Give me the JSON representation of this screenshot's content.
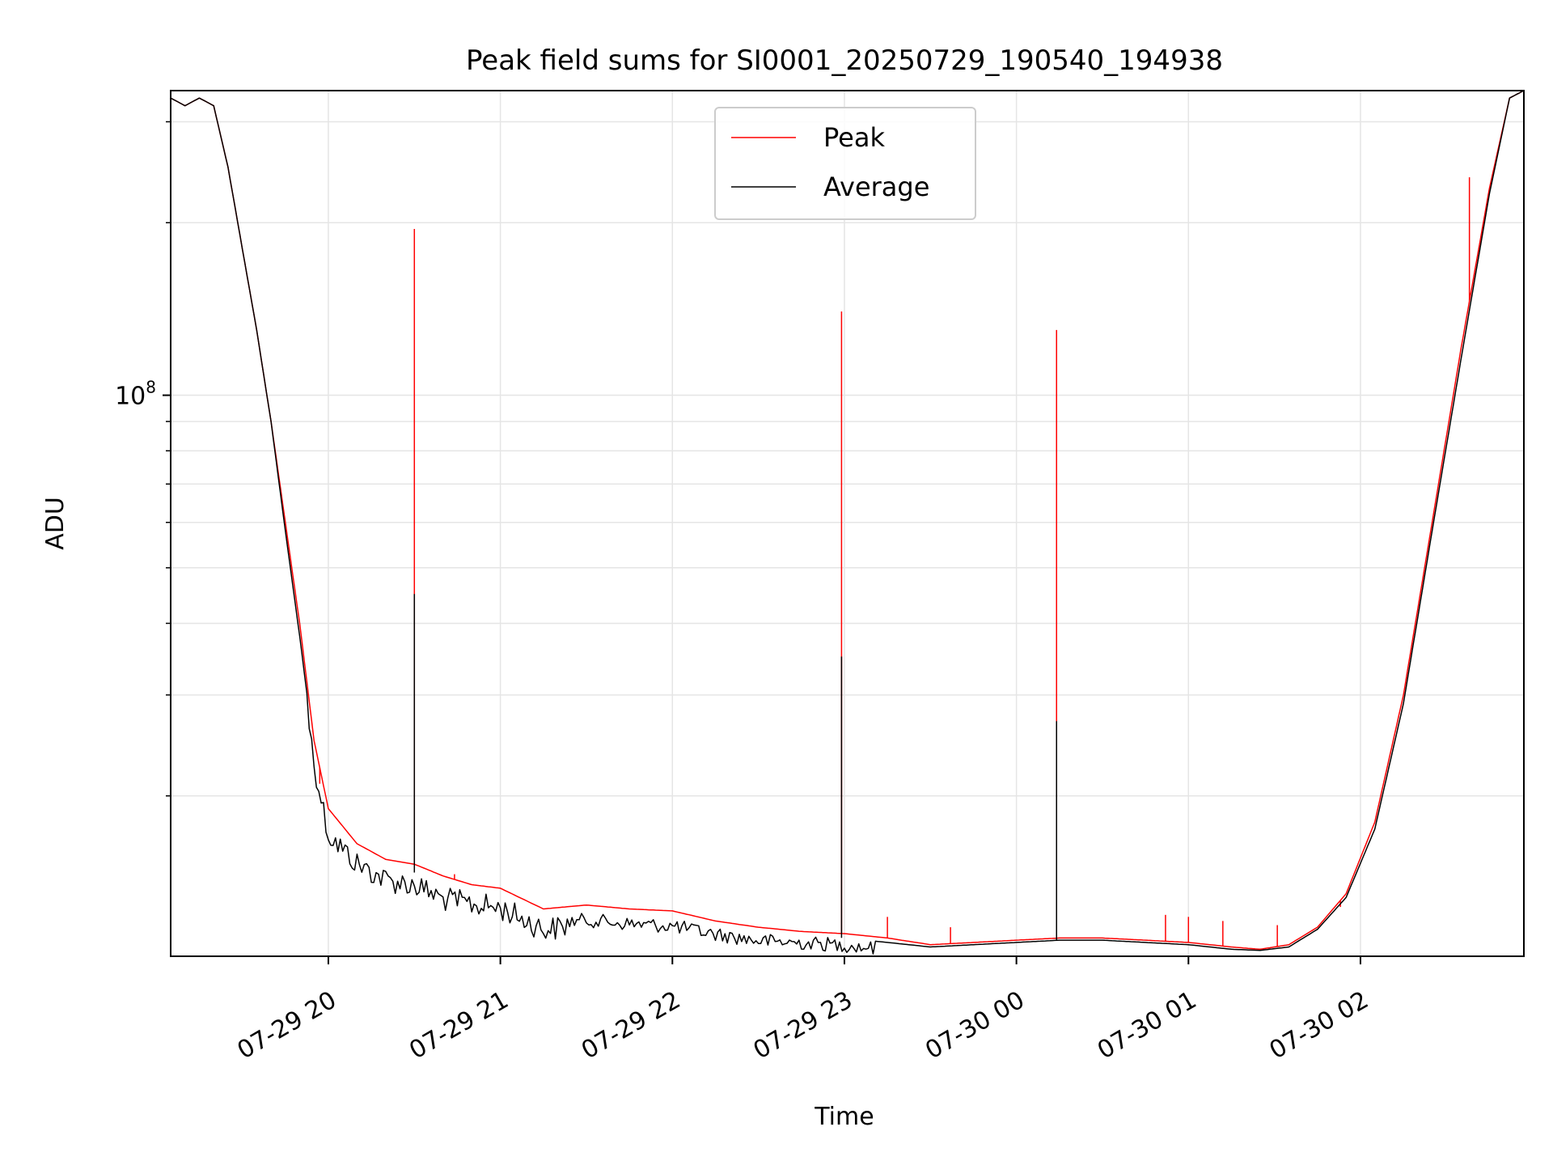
{
  "chart_data": {
    "type": "line",
    "title": "Peak field sums for SI0001_20250729_190540_194938",
    "xlabel": "Time",
    "ylabel": "ADU",
    "y_scale": "log",
    "grid": true,
    "legend_position": "top-center",
    "xlim": [
      "2025-07-29 19:05",
      "2025-07-30 02:57"
    ],
    "ylim": [
      10500000,
      340000000
    ],
    "x_ticks": [
      {
        "value": "2025-07-29 20:00",
        "label": "07-29 20"
      },
      {
        "value": "2025-07-29 21:00",
        "label": "07-29 21"
      },
      {
        "value": "2025-07-29 22:00",
        "label": "07-29 22"
      },
      {
        "value": "2025-07-29 23:00",
        "label": "07-29 23"
      },
      {
        "value": "2025-07-30 00:00",
        "label": "07-30 00"
      },
      {
        "value": "2025-07-30 01:00",
        "label": "07-30 01"
      },
      {
        "value": "2025-07-30 02:00",
        "label": "07-30 02"
      }
    ],
    "y_major_ticks": [
      {
        "value": 100000000,
        "base": "10",
        "exponent": "8"
      }
    ],
    "y_minor_ticks": [
      20000000,
      30000000,
      40000000,
      50000000,
      60000000,
      70000000,
      80000000,
      90000000,
      200000000,
      300000000
    ],
    "colors": {
      "peak": "#ff0000",
      "average": "#000000",
      "grid": "#e5e5e5"
    },
    "series": [
      {
        "name": "Peak",
        "color": "#ff0000",
        "points": [
          [
            "2025-07-29 19:05",
            330000000
          ],
          [
            "2025-07-29 19:10",
            320000000
          ],
          [
            "2025-07-29 19:15",
            330000000
          ],
          [
            "2025-07-29 19:20",
            320000000
          ],
          [
            "2025-07-29 19:25",
            250000000
          ],
          [
            "2025-07-29 19:30",
            180000000
          ],
          [
            "2025-07-29 19:35",
            130000000
          ],
          [
            "2025-07-29 19:40",
            90000000
          ],
          [
            "2025-07-29 19:45",
            60000000
          ],
          [
            "2025-07-29 19:50",
            40000000
          ],
          [
            "2025-07-29 19:55",
            25000000
          ],
          [
            "2025-07-29 20:00",
            19000000
          ],
          [
            "2025-07-29 20:10",
            16500000
          ],
          [
            "2025-07-29 20:20",
            15500000
          ],
          [
            "2025-07-29 20:30",
            15200000
          ],
          [
            "2025-07-29 20:40",
            14500000
          ],
          [
            "2025-07-29 20:50",
            14000000
          ],
          [
            "2025-07-29 21:00",
            13800000
          ],
          [
            "2025-07-29 21:15",
            12700000
          ],
          [
            "2025-07-29 21:30",
            12900000
          ],
          [
            "2025-07-29 21:45",
            12700000
          ],
          [
            "2025-07-29 22:00",
            12600000
          ],
          [
            "2025-07-29 22:15",
            12100000
          ],
          [
            "2025-07-29 22:30",
            11800000
          ],
          [
            "2025-07-29 22:45",
            11600000
          ],
          [
            "2025-07-29 23:00",
            11500000
          ],
          [
            "2025-07-29 23:15",
            11300000
          ],
          [
            "2025-07-29 23:30",
            11000000
          ],
          [
            "2025-07-29 23:45",
            11100000
          ],
          [
            "2025-07-30 00:00",
            11200000
          ],
          [
            "2025-07-30 00:15",
            11300000
          ],
          [
            "2025-07-30 00:30",
            11300000
          ],
          [
            "2025-07-30 00:45",
            11200000
          ],
          [
            "2025-07-30 01:00",
            11100000
          ],
          [
            "2025-07-30 01:15",
            10900000
          ],
          [
            "2025-07-30 01:25",
            10800000
          ],
          [
            "2025-07-30 01:35",
            11000000
          ],
          [
            "2025-07-30 01:45",
            11800000
          ],
          [
            "2025-07-30 01:55",
            13500000
          ],
          [
            "2025-07-30 02:05",
            18000000
          ],
          [
            "2025-07-30 02:15",
            30000000
          ],
          [
            "2025-07-30 02:25",
            60000000
          ],
          [
            "2025-07-30 02:35",
            120000000
          ],
          [
            "2025-07-30 02:45",
            230000000
          ],
          [
            "2025-07-30 02:52",
            330000000
          ],
          [
            "2025-07-30 02:57",
            340000000
          ]
        ],
        "spikes": [
          [
            "2025-07-29 20:30",
            195000000
          ],
          [
            "2025-07-29 22:59",
            140000000
          ],
          [
            "2025-07-30 00:14",
            130000000
          ],
          [
            "2025-07-29 19:57",
            21000000
          ],
          [
            "2025-07-29 20:44",
            14600000
          ],
          [
            "2025-07-29 23:15",
            12300000
          ],
          [
            "2025-07-29 23:37",
            11800000
          ],
          [
            "2025-07-30 00:52",
            12400000
          ],
          [
            "2025-07-30 01:00",
            12300000
          ],
          [
            "2025-07-30 01:12",
            12100000
          ],
          [
            "2025-07-30 01:31",
            11900000
          ],
          [
            "2025-07-30 01:53",
            12800000
          ],
          [
            "2025-07-30 02:38",
            240000000
          ]
        ]
      },
      {
        "name": "Average",
        "color": "#000000",
        "points": [
          [
            "2025-07-29 19:05",
            330000000
          ],
          [
            "2025-07-29 19:10",
            320000000
          ],
          [
            "2025-07-29 19:15",
            330000000
          ],
          [
            "2025-07-29 19:20",
            320000000
          ],
          [
            "2025-07-29 19:25",
            250000000
          ],
          [
            "2025-07-29 19:30",
            180000000
          ],
          [
            "2025-07-29 19:35",
            130000000
          ],
          [
            "2025-07-29 19:40",
            90000000
          ],
          [
            "2025-07-29 19:45",
            58000000
          ],
          [
            "2025-07-29 19:50",
            38000000
          ],
          [
            "2025-07-29 19:55",
            24000000
          ],
          [
            "2025-07-29 20:00",
            18000000
          ],
          [
            "2025-07-29 20:10",
            16000000
          ],
          [
            "2025-07-29 20:20",
            15000000
          ],
          [
            "2025-07-29 20:30",
            14700000
          ],
          [
            "2025-07-29 20:40",
            13900000
          ],
          [
            "2025-07-29 20:50",
            13600000
          ],
          [
            "2025-07-29 21:00",
            13400000
          ],
          [
            "2025-07-29 21:15",
            12300000
          ],
          [
            "2025-07-29 21:30",
            12500000
          ],
          [
            "2025-07-29 21:45",
            12300000
          ],
          [
            "2025-07-29 22:00",
            12200000
          ],
          [
            "2025-07-29 22:15",
            11800000
          ],
          [
            "2025-07-29 22:30",
            11500000
          ],
          [
            "2025-07-29 22:45",
            11400000
          ],
          [
            "2025-07-29 23:00",
            11300000
          ],
          [
            "2025-07-29 23:15",
            11100000
          ],
          [
            "2025-07-29 23:30",
            10900000
          ],
          [
            "2025-07-29 23:45",
            11000000
          ],
          [
            "2025-07-30 00:00",
            11100000
          ],
          [
            "2025-07-30 00:15",
            11200000
          ],
          [
            "2025-07-30 00:30",
            11200000
          ],
          [
            "2025-07-30 00:45",
            11100000
          ],
          [
            "2025-07-30 01:00",
            11000000
          ],
          [
            "2025-07-30 01:15",
            10800000
          ],
          [
            "2025-07-30 01:25",
            10750000
          ],
          [
            "2025-07-30 01:35",
            10900000
          ],
          [
            "2025-07-30 01:45",
            11700000
          ],
          [
            "2025-07-30 01:55",
            13300000
          ],
          [
            "2025-07-30 02:05",
            17500000
          ],
          [
            "2025-07-30 02:15",
            29000000
          ],
          [
            "2025-07-30 02:25",
            58000000
          ],
          [
            "2025-07-30 02:35",
            115000000
          ],
          [
            "2025-07-30 02:45",
            225000000
          ],
          [
            "2025-07-30 02:52",
            330000000
          ],
          [
            "2025-07-30 02:57",
            340000000
          ]
        ],
        "spikes": [
          [
            "2025-07-29 20:30",
            45000000
          ],
          [
            "2025-07-29 22:59",
            35000000
          ],
          [
            "2025-07-30 00:14",
            27000000
          ]
        ]
      }
    ]
  }
}
